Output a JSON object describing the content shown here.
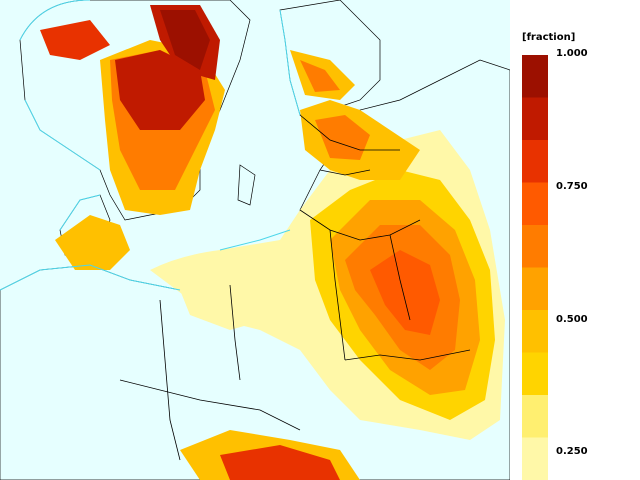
{
  "legend": {
    "unit": "[fraction]",
    "ticks": [
      "1.000",
      "0.750",
      "0.500",
      "0.250"
    ],
    "colors": [
      "#fff8a8",
      "#ffef70",
      "#ffd400",
      "#ffc000",
      "#ffa200",
      "#ff7c00",
      "#ff5a00",
      "#e83200",
      "#c01a00",
      "#9c1000"
    ],
    "ocean_color": "#e6ffff",
    "coast_color": "#4dd6ea",
    "border_color": "#000000"
  }
}
